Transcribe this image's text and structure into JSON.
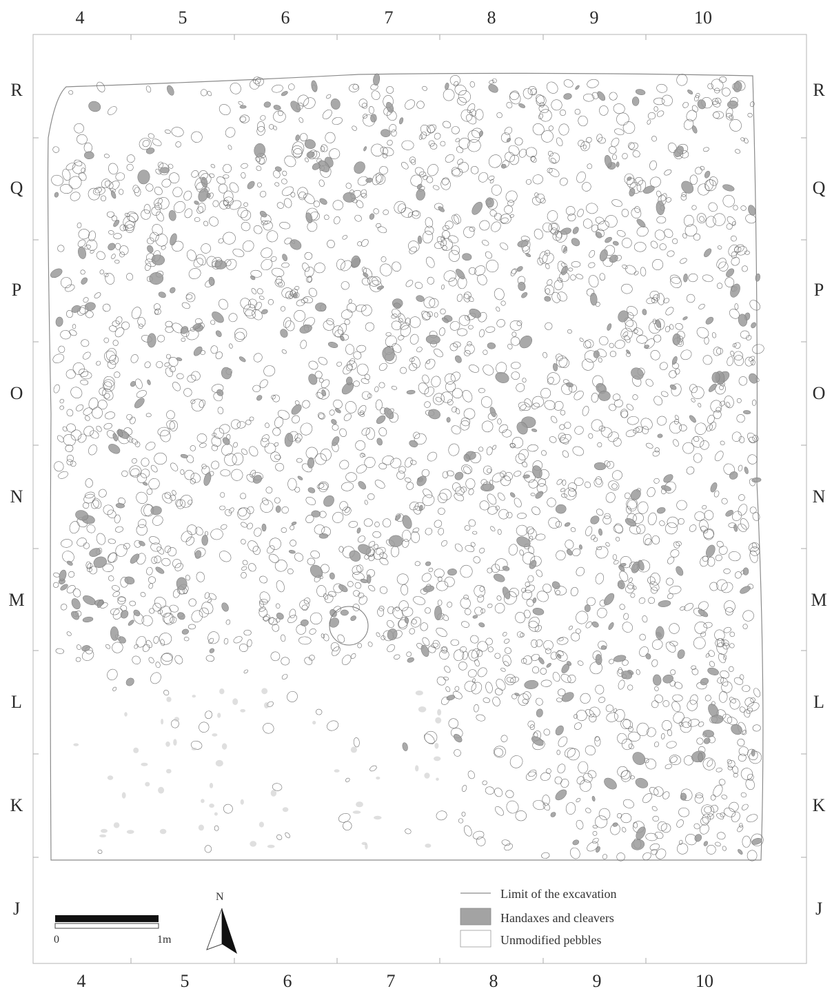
{
  "map": {
    "grid_columns": [
      "4",
      "5",
      "6",
      "7",
      "8",
      "9",
      "10"
    ],
    "grid_rows": [
      "R",
      "Q",
      "P",
      "O",
      "N",
      "M",
      "L",
      "K",
      "J"
    ]
  },
  "legend": {
    "items": [
      {
        "key": "limit",
        "label": "Limit of the excavation"
      },
      {
        "key": "handaxes",
        "label": "Handaxes and cleavers"
      },
      {
        "key": "pebbles",
        "label": "Unmodified pebbles"
      }
    ]
  },
  "scale_bar": {
    "start_label": "0",
    "end_label": "1m"
  },
  "north_arrow": {
    "label": "N"
  },
  "colors": {
    "handaxe_fill": "#9a9a9a",
    "pebble_stroke": "#6b6b6b",
    "limit_line": "#8a8a8a",
    "frame": "#aaaaaa"
  },
  "icons": {
    "north": "north-arrow-icon"
  }
}
